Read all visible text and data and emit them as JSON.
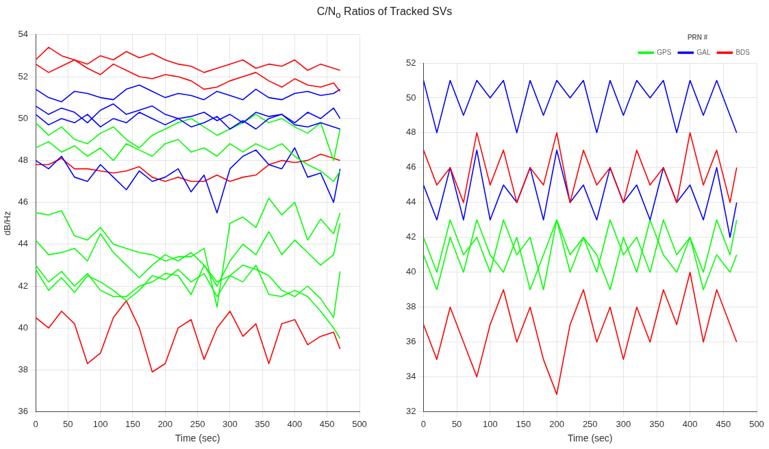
{
  "chart_data": [
    {
      "type": "line",
      "title": "C/N$_{o}$ Ratios of Tracked SVs",
      "xlabel": "Time (sec)",
      "ylabel": "dB/Hz",
      "xlim": [
        0,
        500
      ],
      "xticks": [
        0,
        50,
        100,
        150,
        200,
        250,
        300,
        350,
        400,
        450,
        500
      ],
      "ylim": [
        36,
        54
      ],
      "yticks": [
        36,
        38,
        40,
        42,
        44,
        46,
        48,
        50,
        52,
        54
      ],
      "grid": true,
      "legend": false,
      "marker": "none",
      "line_style": "solid",
      "x": [
        0,
        20,
        40,
        60,
        80,
        100,
        120,
        140,
        160,
        180,
        200,
        220,
        240,
        260,
        280,
        300,
        320,
        340,
        360,
        380,
        400,
        420,
        440,
        460,
        470
      ],
      "series": [
        {
          "color": "#ff0000",
          "values": [
            52.8,
            53.4,
            53,
            52.8,
            52.6,
            53,
            52.8,
            53.2,
            52.9,
            53.1,
            52.8,
            52.6,
            52.5,
            52.2,
            52.4,
            52.6,
            52.8,
            52.4,
            52.6,
            52.5,
            52.8,
            52.3,
            52.6,
            52.4,
            52.3
          ]
        },
        {
          "color": "#ff0000",
          "values": [
            52.6,
            52.2,
            52.5,
            52.8,
            52.4,
            52.1,
            52.6,
            52.3,
            52,
            51.9,
            52.1,
            52,
            51.8,
            51.4,
            51.5,
            51.8,
            52,
            52.2,
            51.8,
            51.5,
            51.9,
            51.6,
            51.5,
            51.7,
            51.3
          ]
        },
        {
          "color": "#0000ff",
          "values": [
            51.4,
            51,
            50.8,
            51.3,
            51.2,
            51,
            50.9,
            51.4,
            51.6,
            51.3,
            51,
            51.2,
            51.1,
            50.9,
            51.3,
            51.1,
            50.9,
            51.4,
            51,
            50.9,
            51.2,
            51.3,
            51.1,
            51.2,
            51.4
          ]
        },
        {
          "color": "#0000ff",
          "values": [
            50.6,
            50.2,
            50.5,
            50.3,
            49.8,
            50.4,
            50.7,
            50.2,
            50.4,
            50.6,
            50.2,
            50,
            50.1,
            50.3,
            49.9,
            50.2,
            49.8,
            50.3,
            50.1,
            50.2,
            49.8,
            50.3,
            50,
            50.5,
            50
          ]
        },
        {
          "color": "#0000ff",
          "values": [
            50.2,
            49.7,
            50,
            49.8,
            50.2,
            49.6,
            50,
            49.8,
            50.3,
            50,
            49.7,
            50,
            49.6,
            49.8,
            50.1,
            49.5,
            49.9,
            49.5,
            50,
            50.2,
            49.7,
            49.6,
            49.8,
            49.6,
            49.5
          ]
        },
        {
          "color": "#00ff00",
          "values": [
            49.8,
            49.2,
            49.6,
            49,
            48.8,
            49.3,
            49.6,
            49,
            48.6,
            49.2,
            49.5,
            49.8,
            50,
            49.6,
            49.2,
            49.5,
            49.8,
            50.2,
            49.8,
            50,
            49.6,
            49.3,
            49.8,
            48,
            49.5
          ]
        },
        {
          "color": "#00ff00",
          "values": [
            48.6,
            48.9,
            48.4,
            48.7,
            48.2,
            48.6,
            48,
            48.8,
            48.5,
            48.2,
            48.8,
            49,
            48.4,
            48.6,
            48.2,
            48.8,
            48.4,
            48.8,
            48.5,
            48.8,
            48.2,
            47.8,
            47.5,
            47,
            47.5
          ]
        },
        {
          "color": "#0000ff",
          "values": [
            48,
            47.6,
            48.2,
            47.2,
            47,
            47.8,
            47.2,
            46.6,
            47.5,
            47,
            47.2,
            47.6,
            46.5,
            47.3,
            45.5,
            47.6,
            48.2,
            48.5,
            47.8,
            47.6,
            48.6,
            47.2,
            47.4,
            46,
            47.6
          ]
        },
        {
          "color": "#ff0000",
          "values": [
            47.8,
            47.8,
            48.1,
            47.6,
            47.6,
            47.5,
            47.4,
            47.5,
            47.7,
            47.2,
            47,
            47.2,
            47,
            47,
            47.3,
            47,
            47.2,
            47.3,
            47.8,
            48,
            47.9,
            48,
            48.3,
            48.1,
            48
          ]
        },
        {
          "color": "#00ff00",
          "values": [
            45.5,
            45.4,
            45.6,
            44.4,
            44.2,
            44.8,
            44,
            43.8,
            43.6,
            43.5,
            43.2,
            43.4,
            43.4,
            43.8,
            41,
            45,
            45.3,
            44.8,
            46.2,
            45.4,
            46,
            44.2,
            45.2,
            44.5,
            45.5
          ]
        },
        {
          "color": "#00ff00",
          "values": [
            44.2,
            43.5,
            43.6,
            43.8,
            43.2,
            44.5,
            43.6,
            43,
            42.4,
            43,
            43.5,
            43.2,
            43.6,
            43,
            42,
            43.2,
            44,
            43.5,
            44.6,
            43.5,
            44.2,
            43.6,
            43,
            43.5,
            45
          ]
        },
        {
          "color": "#00ff00",
          "values": [
            42.8,
            41.8,
            42.4,
            41.7,
            42.5,
            42.2,
            41.8,
            41.3,
            41.8,
            42.5,
            42.3,
            42.8,
            42.2,
            42.6,
            41.5,
            42.5,
            43,
            42.8,
            42.5,
            41.8,
            41.5,
            42,
            41.4,
            40.5,
            42.7
          ]
        },
        {
          "color": "#00ff00",
          "values": [
            43,
            42.2,
            42.7,
            42,
            42.6,
            41.8,
            41.5,
            41.5,
            42,
            42.2,
            42.6,
            42.5,
            41.6,
            43,
            42.2,
            42.5,
            42.2,
            43,
            41.6,
            41.5,
            41.8,
            41.5,
            40.8,
            40,
            39.5
          ]
        },
        {
          "color": "#ff0000",
          "values": [
            40.5,
            40,
            40.8,
            40.2,
            38.3,
            38.8,
            40.5,
            41.3,
            40,
            37.9,
            38.3,
            40,
            40.4,
            38.5,
            40,
            40.8,
            39.6,
            40.2,
            38.3,
            40.2,
            40.4,
            39.2,
            39.6,
            39.8,
            39
          ]
        }
      ]
    },
    {
      "type": "line",
      "xlabel": "Time (sec)",
      "xlim": [
        0,
        500
      ],
      "xticks": [
        0,
        50,
        100,
        150,
        200,
        250,
        300,
        350,
        400,
        450,
        500
      ],
      "ylim": [
        32,
        52
      ],
      "yticks": [
        32,
        34,
        36,
        38,
        40,
        42,
        44,
        46,
        48,
        50,
        52
      ],
      "grid": true,
      "legend": "top right",
      "legend_title": "PRN #",
      "marker": "none",
      "line_style": "solid",
      "x": [
        0,
        20,
        40,
        60,
        80,
        100,
        120,
        140,
        160,
        180,
        200,
        220,
        240,
        260,
        280,
        300,
        320,
        340,
        360,
        380,
        400,
        420,
        440,
        460,
        470
      ],
      "series": [
        {
          "name": "GPS",
          "color": "#00ff00",
          "values": [
            42,
            40,
            43,
            41,
            42,
            40,
            43,
            41,
            42,
            39,
            43,
            41,
            42,
            40,
            43,
            41,
            42,
            40,
            43,
            41,
            42,
            40,
            43,
            41,
            43
          ]
        },
        {
          "name": "GAL",
          "color": "#0000ff",
          "values": [
            51,
            48,
            51,
            49,
            51,
            50,
            51,
            48,
            51,
            49,
            51,
            50,
            51,
            48,
            51,
            49,
            51,
            50,
            51,
            48,
            51,
            49,
            51,
            49,
            48
          ]
        },
        {
          "name": "BDS",
          "color": "#ff0000",
          "values": [
            47,
            45,
            46,
            44,
            48,
            45,
            47,
            44,
            46,
            45,
            48,
            44,
            47,
            45,
            46,
            44,
            47,
            45,
            46,
            44,
            48,
            45,
            47,
            44,
            46
          ]
        },
        {
          "color": "#0000ff",
          "values": [
            45,
            43,
            46,
            43,
            47,
            43,
            45,
            44,
            46,
            43,
            47,
            44,
            45,
            43,
            46,
            44,
            45,
            43,
            46,
            44,
            45,
            43,
            46,
            42,
            44
          ]
        },
        {
          "color": "#00ff00",
          "values": [
            41,
            39,
            42,
            40,
            43,
            41,
            40,
            42,
            39,
            41,
            43,
            40,
            42,
            41,
            39,
            42,
            40,
            43,
            41,
            40,
            42,
            39,
            41,
            40,
            41
          ]
        },
        {
          "color": "#ff0000",
          "values": [
            37,
            35,
            38,
            36,
            34,
            37,
            39,
            36,
            38,
            35,
            33,
            37,
            39,
            36,
            38,
            35,
            38,
            36,
            39,
            37,
            40,
            36,
            39,
            37,
            36
          ]
        }
      ]
    }
  ]
}
